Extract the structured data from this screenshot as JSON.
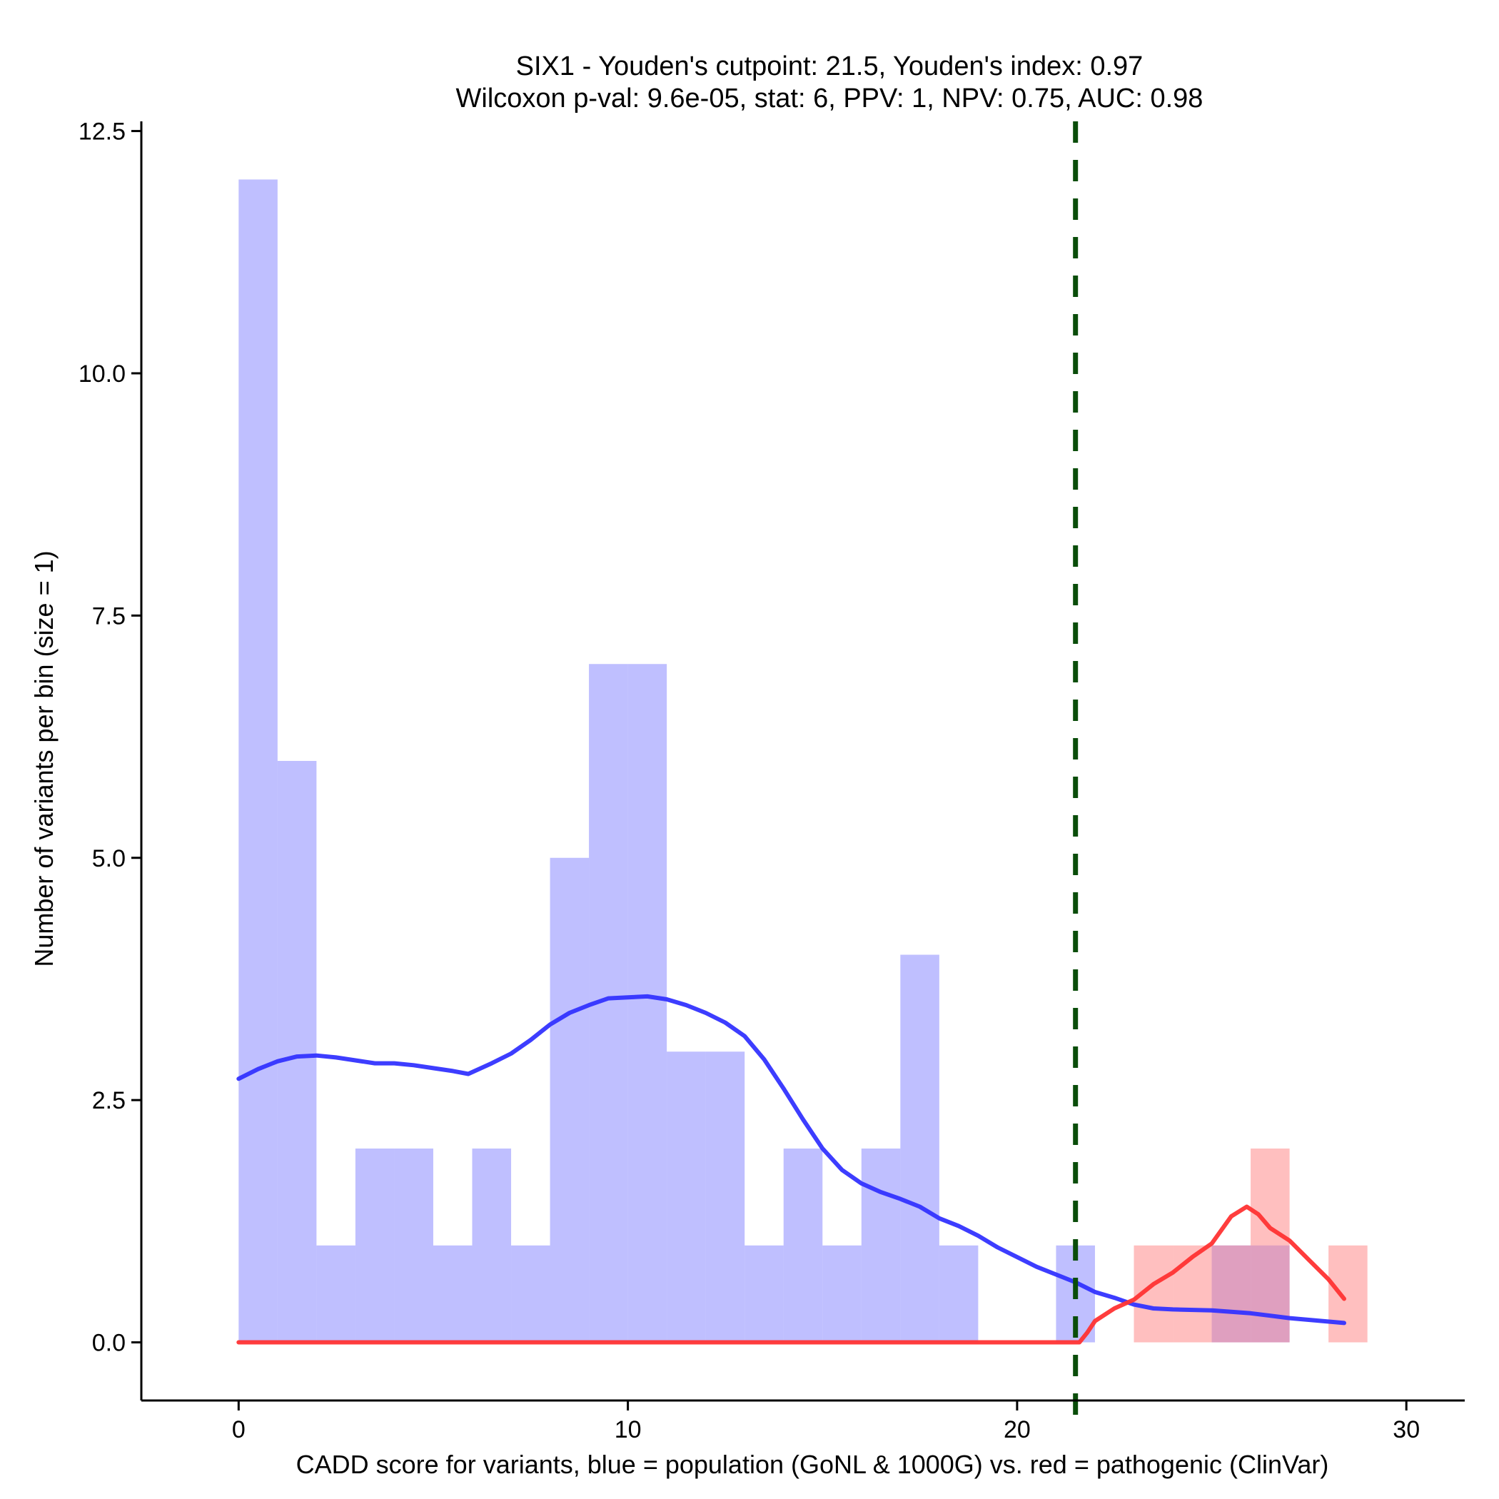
{
  "chart_data": {
    "type": "histogram",
    "title": "SIX1 - Youden's cutpoint: 21.5, Youden's index: 0.97",
    "subtitle": "Wilcoxon p-val: 9.6e-05, stat: 6, PPV: 1, NPV: 0.75, AUC: 0.98",
    "xlabel": "CADD score for variants, blue = population (GoNL & 1000G) vs. red = pathogenic (ClinVar)",
    "ylabel": "Number of variants per bin (size = 1)",
    "xlim": [
      -2.5,
      31.5
    ],
    "ylim": [
      -0.6,
      12.6
    ],
    "xticks": [
      0,
      10,
      20,
      30
    ],
    "xtick_labels": [
      "0",
      "10",
      "20",
      "30"
    ],
    "yticks": [
      0,
      2.5,
      5,
      7.5,
      10,
      12.5
    ],
    "ytick_labels": [
      "0.0",
      "2.5",
      "5.0",
      "7.5",
      "10.0",
      "12.5"
    ],
    "cutpoint": 21.5,
    "bin_width": 1,
    "series": [
      {
        "name": "population (GoNL & 1000G)",
        "color": "#8080ff",
        "opacity": 0.5,
        "bins": [
          [
            0,
            12
          ],
          [
            1,
            6
          ],
          [
            2,
            1
          ],
          [
            3,
            2
          ],
          [
            4,
            2
          ],
          [
            5,
            1
          ],
          [
            6,
            2
          ],
          [
            7,
            1
          ],
          [
            8,
            5
          ],
          [
            9,
            7
          ],
          [
            10,
            7
          ],
          [
            11,
            3
          ],
          [
            12,
            3
          ],
          [
            13,
            1
          ],
          [
            14,
            2
          ],
          [
            15,
            1
          ],
          [
            16,
            2
          ],
          [
            17,
            4
          ],
          [
            18,
            1
          ],
          [
            21,
            1
          ],
          [
            25,
            1
          ],
          [
            26,
            1
          ]
        ],
        "density_color": "#3333ff",
        "density": [
          [
            0,
            2.72
          ],
          [
            0.5,
            2.82
          ],
          [
            1,
            2.9
          ],
          [
            1.5,
            2.95
          ],
          [
            2,
            2.96
          ],
          [
            2.5,
            2.94
          ],
          [
            3,
            2.91
          ],
          [
            3.5,
            2.88
          ],
          [
            4,
            2.88
          ],
          [
            4.5,
            2.86
          ],
          [
            5,
            2.83
          ],
          [
            5.5,
            2.8
          ],
          [
            5.9,
            2.77
          ],
          [
            6.5,
            2.88
          ],
          [
            7,
            2.98
          ],
          [
            7.5,
            3.12
          ],
          [
            8,
            3.28
          ],
          [
            8.5,
            3.4
          ],
          [
            9,
            3.48
          ],
          [
            9.5,
            3.55
          ],
          [
            10,
            3.56
          ],
          [
            10.5,
            3.57
          ],
          [
            11,
            3.54
          ],
          [
            11.5,
            3.48
          ],
          [
            12,
            3.4
          ],
          [
            12.5,
            3.3
          ],
          [
            13,
            3.16
          ],
          [
            13.5,
            2.92
          ],
          [
            14,
            2.62
          ],
          [
            14.5,
            2.3
          ],
          [
            15,
            2.0
          ],
          [
            15.5,
            1.78
          ],
          [
            16,
            1.64
          ],
          [
            16.5,
            1.55
          ],
          [
            17,
            1.48
          ],
          [
            17.5,
            1.4
          ],
          [
            18,
            1.28
          ],
          [
            18.5,
            1.2
          ],
          [
            19,
            1.1
          ],
          [
            19.5,
            0.98
          ],
          [
            20,
            0.88
          ],
          [
            20.5,
            0.78
          ],
          [
            21,
            0.7
          ],
          [
            21.5,
            0.62
          ],
          [
            22,
            0.52
          ],
          [
            22.5,
            0.46
          ],
          [
            23,
            0.39
          ],
          [
            23.5,
            0.35
          ],
          [
            24,
            0.34
          ],
          [
            25,
            0.33
          ],
          [
            26,
            0.3
          ],
          [
            27,
            0.25
          ],
          [
            28.4,
            0.2
          ]
        ]
      },
      {
        "name": "pathogenic (ClinVar)",
        "color": "#ff8080",
        "opacity": 0.5,
        "bins": [
          [
            23,
            1
          ],
          [
            24,
            1
          ],
          [
            25,
            1
          ],
          [
            26,
            2
          ],
          [
            28,
            1
          ]
        ],
        "density_color": "#ff3333",
        "density": [
          [
            0,
            0
          ],
          [
            21.6,
            0
          ],
          [
            21.8,
            0.1
          ],
          [
            22,
            0.22
          ],
          [
            22.5,
            0.35
          ],
          [
            23,
            0.44
          ],
          [
            23.5,
            0.6
          ],
          [
            24,
            0.72
          ],
          [
            24.5,
            0.88
          ],
          [
            25,
            1.02
          ],
          [
            25.5,
            1.3
          ],
          [
            25.9,
            1.4
          ],
          [
            26.2,
            1.32
          ],
          [
            26.5,
            1.18
          ],
          [
            27,
            1.05
          ],
          [
            27.5,
            0.85
          ],
          [
            28,
            0.65
          ],
          [
            28.4,
            0.45
          ]
        ]
      }
    ]
  }
}
